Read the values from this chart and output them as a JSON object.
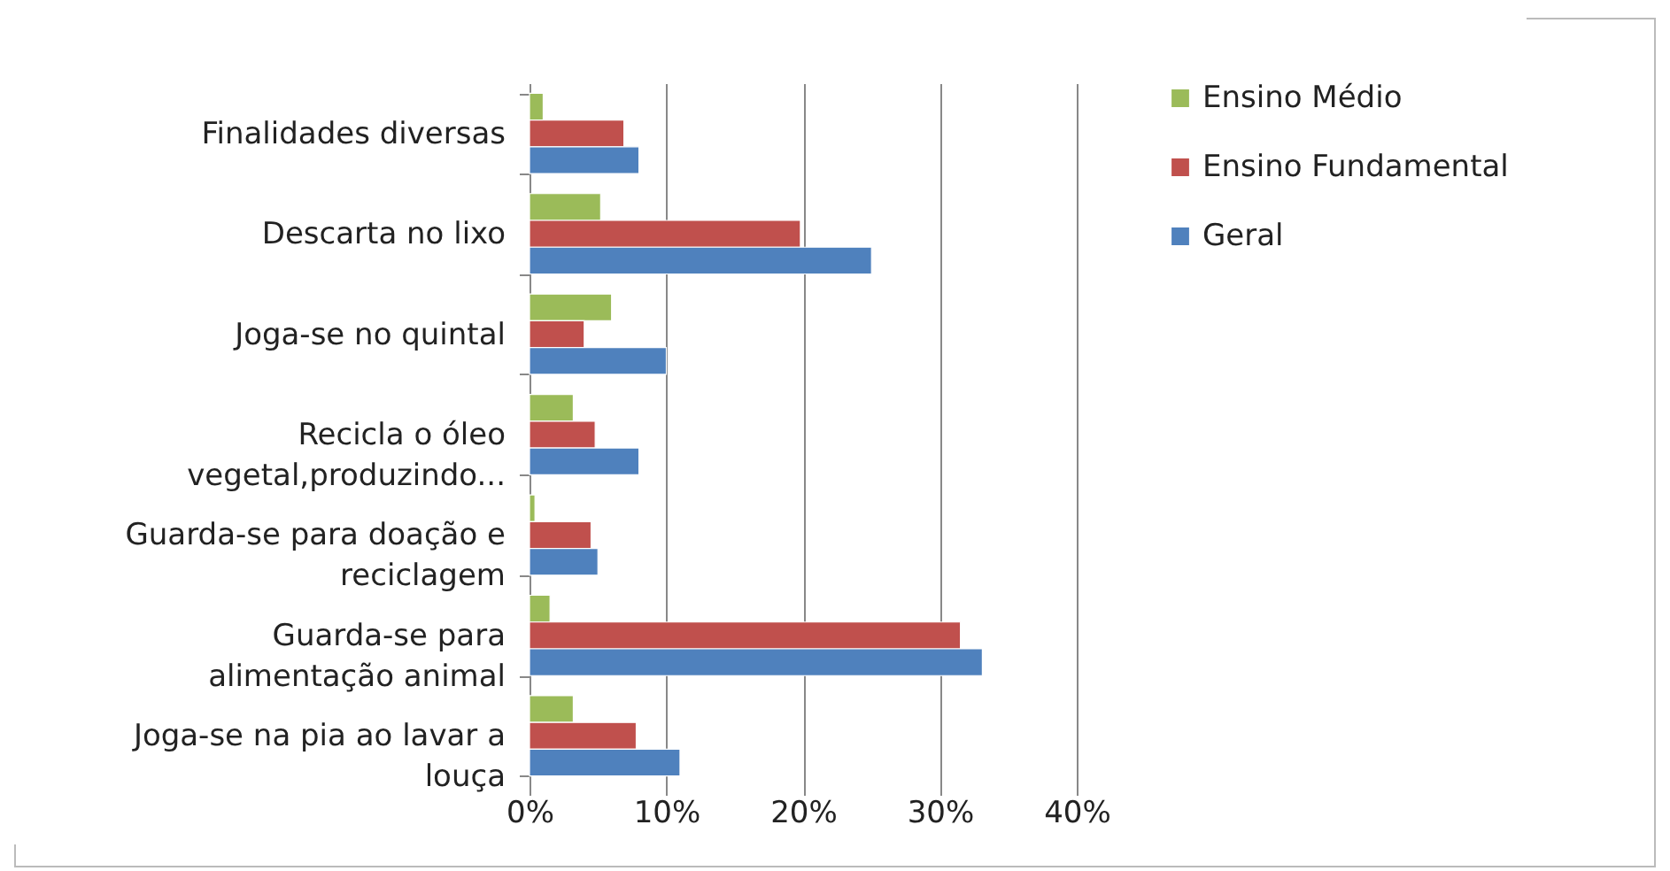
{
  "chart_data": {
    "type": "bar",
    "orientation": "horizontal",
    "categories": [
      "Finalidades diversas",
      "Descarta no lixo",
      "Joga-se no quintal",
      "Recicla o óleo vegetal,produzindo...",
      "Guarda-se para doação e reciclagem",
      "Guarda-se para alimentação animal",
      "Joga-se na pia ao lavar a louça"
    ],
    "series": [
      {
        "name": "Ensino Médio",
        "color": "#9bbb59",
        "values": [
          1.0,
          5.2,
          6.0,
          3.2,
          0.4,
          1.5,
          3.2
        ]
      },
      {
        "name": "Ensino Fundamental",
        "color": "#c0504d",
        "values": [
          6.9,
          19.8,
          4.0,
          4.8,
          4.5,
          31.5,
          7.8
        ]
      },
      {
        "name": "Geral",
        "color": "#4f81bd",
        "values": [
          8.0,
          25.0,
          10.0,
          8.0,
          5.0,
          33.1,
          11.0
        ]
      }
    ],
    "xlim": [
      0,
      40
    ],
    "xticks": [
      {
        "value": 0,
        "label": "0%"
      },
      {
        "value": 10,
        "label": "10%"
      },
      {
        "value": 20,
        "label": "20%"
      },
      {
        "value": 30,
        "label": "30%"
      },
      {
        "value": 40,
        "label": "40%"
      }
    ],
    "grid": "x",
    "legend": "right"
  }
}
